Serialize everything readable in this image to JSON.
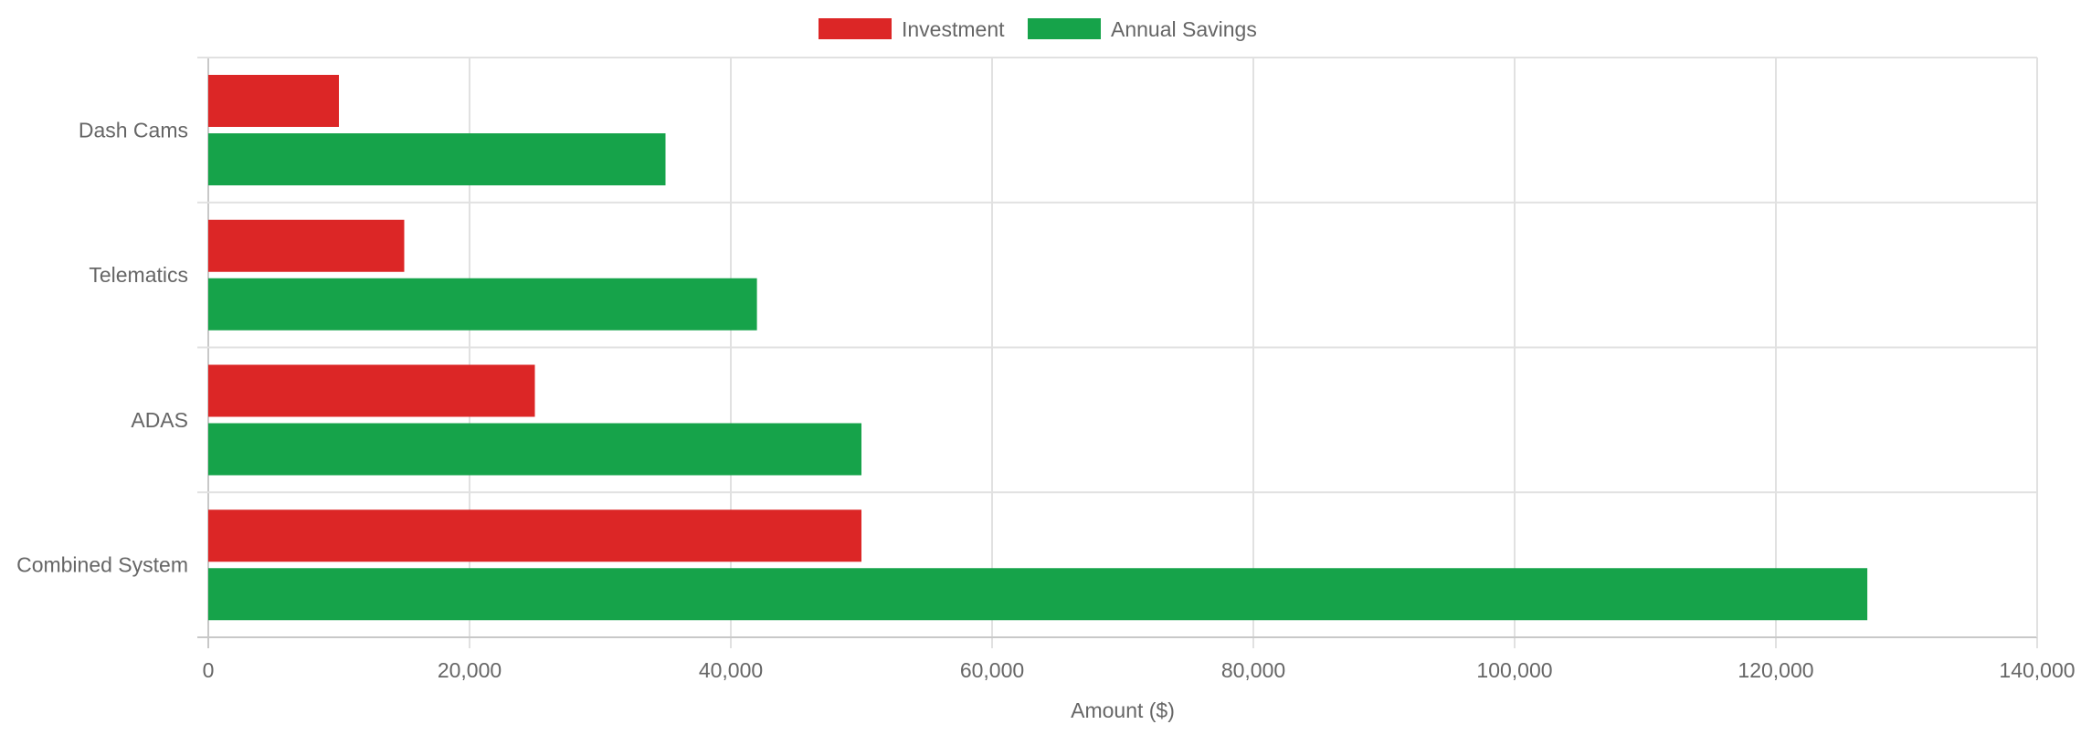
{
  "chart_data": {
    "type": "bar",
    "orientation": "horizontal",
    "categories": [
      "Dash Cams",
      "Telematics",
      "ADAS",
      "Combined System"
    ],
    "series": [
      {
        "name": "Investment",
        "color": "#dc2626",
        "values": [
          10000,
          15000,
          25000,
          50000
        ]
      },
      {
        "name": "Annual Savings",
        "color": "#16a34a",
        "values": [
          35000,
          42000,
          50000,
          127000
        ]
      }
    ],
    "xlabel": "Amount ($)",
    "ylabel": "",
    "xlim": [
      0,
      140000
    ],
    "xticks": [
      0,
      20000,
      40000,
      60000,
      80000,
      100000,
      120000,
      140000
    ],
    "xtick_labels": [
      "0",
      "20,000",
      "40,000",
      "60,000",
      "80,000",
      "100,000",
      "120,000",
      "140,000"
    ],
    "grid": true,
    "legend_position": "top"
  }
}
